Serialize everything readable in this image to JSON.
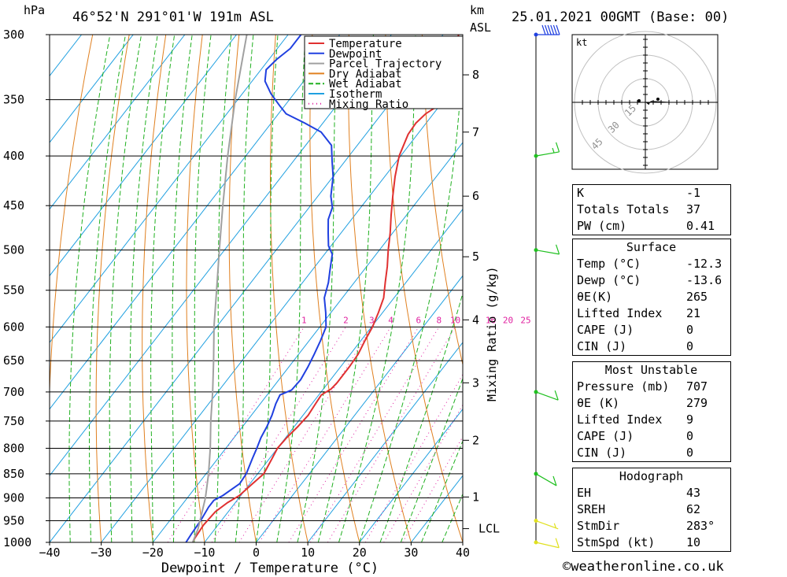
{
  "header": {
    "pressure_unit": "hPa",
    "location": "46°52'N 291°01'W 191m ASL",
    "km_label": "km",
    "asl_label": "ASL",
    "datetime": "25.01.2021 00GMT (Base: 00)"
  },
  "chart_data": {
    "type": "line",
    "title": "",
    "xlabel": "Dewpoint / Temperature (°C)",
    "ylabel": "hPa",
    "right_axis_label": "Mixing Ratio (g/kg)",
    "xlim": [
      -40,
      40
    ],
    "x_ticks": [
      -40,
      -30,
      -20,
      -10,
      0,
      10,
      20,
      30,
      40
    ],
    "pressure_ticks": [
      300,
      350,
      400,
      450,
      500,
      550,
      600,
      650,
      700,
      750,
      800,
      850,
      900,
      950,
      1000
    ],
    "km_ticks": [
      {
        "label": "8",
        "p": 330
      },
      {
        "label": "7",
        "p": 378
      },
      {
        "label": "6",
        "p": 440
      },
      {
        "label": "5",
        "p": 508
      },
      {
        "label": "4",
        "p": 590
      },
      {
        "label": "3",
        "p": 685
      },
      {
        "label": "2",
        "p": 785
      },
      {
        "label": "1",
        "p": 898
      },
      {
        "label": "LCL",
        "p": 968
      }
    ],
    "mixing_ratio_labels": [
      "1",
      "2",
      "3",
      "4",
      "6",
      "8",
      "10",
      "16",
      "20",
      "25"
    ],
    "legend": [
      {
        "name": "Temperature",
        "color": "#e03030"
      },
      {
        "name": "Dewpoint",
        "color": "#2040e0"
      },
      {
        "name": "Parcel Trajectory",
        "color": "#a0a0a0"
      },
      {
        "name": "Dry Adiabat",
        "color": "#e08020"
      },
      {
        "name": "Wet Adiabat",
        "color": "#20b020"
      },
      {
        "name": "Isotherm",
        "color": "#20a0e0"
      },
      {
        "name": "Mixing Ratio",
        "color": "#e020a0"
      }
    ],
    "series": [
      {
        "name": "Temperature",
        "color": "#e03030",
        "points": [
          [
            1000,
            -12.3
          ],
          [
            990,
            -12.5
          ],
          [
            960,
            -12.8
          ],
          [
            930,
            -12.5
          ],
          [
            910,
            -11.5
          ],
          [
            895,
            -10.3
          ],
          [
            870,
            -9.5
          ],
          [
            850,
            -8.8
          ],
          [
            820,
            -9.5
          ],
          [
            800,
            -10.0
          ],
          [
            780,
            -9.8
          ],
          [
            760,
            -9.3
          ],
          [
            740,
            -9.0
          ],
          [
            720,
            -9.3
          ],
          [
            705,
            -9.5
          ],
          [
            695,
            -8.5
          ],
          [
            685,
            -8.3
          ],
          [
            660,
            -8.3
          ],
          [
            640,
            -8.5
          ],
          [
            620,
            -9.2
          ],
          [
            600,
            -9.8
          ],
          [
            580,
            -10.8
          ],
          [
            560,
            -12.0
          ],
          [
            540,
            -14.0
          ],
          [
            520,
            -16.0
          ],
          [
            500,
            -18.3
          ],
          [
            480,
            -20.5
          ],
          [
            460,
            -23.0
          ],
          [
            440,
            -25.5
          ],
          [
            420,
            -28.0
          ],
          [
            400,
            -30.3
          ],
          [
            380,
            -31.8
          ],
          [
            370,
            -32.0
          ],
          [
            362,
            -31.5
          ],
          [
            355,
            -30.3
          ],
          [
            345,
            -30.5
          ],
          [
            335,
            -31.0
          ],
          [
            325,
            -32.5
          ],
          [
            315,
            -34.5
          ],
          [
            305,
            -36.3
          ],
          [
            300,
            -37.0
          ]
        ]
      },
      {
        "name": "Dewpoint",
        "color": "#2040e0",
        "points": [
          [
            1000,
            -13.6
          ],
          [
            980,
            -13.8
          ],
          [
            950,
            -14.0
          ],
          [
            920,
            -14.5
          ],
          [
            905,
            -14.5
          ],
          [
            895,
            -13.5
          ],
          [
            870,
            -12.0
          ],
          [
            850,
            -12.2
          ],
          [
            820,
            -13.3
          ],
          [
            800,
            -14.0
          ],
          [
            780,
            -14.8
          ],
          [
            760,
            -15.3
          ],
          [
            740,
            -16.0
          ],
          [
            720,
            -17.0
          ],
          [
            705,
            -17.5
          ],
          [
            697,
            -16.0
          ],
          [
            680,
            -15.8
          ],
          [
            660,
            -16.3
          ],
          [
            640,
            -17.0
          ],
          [
            620,
            -17.8
          ],
          [
            600,
            -18.8
          ],
          [
            580,
            -21.0
          ],
          [
            560,
            -23.5
          ],
          [
            540,
            -25.0
          ],
          [
            525,
            -26.5
          ],
          [
            505,
            -28.5
          ],
          [
            495,
            -30.5
          ],
          [
            480,
            -32.5
          ],
          [
            465,
            -34.5
          ],
          [
            452,
            -35.5
          ],
          [
            440,
            -37.5
          ],
          [
            420,
            -40.0
          ],
          [
            405,
            -42.5
          ],
          [
            390,
            -45.0
          ],
          [
            378,
            -49.0
          ],
          [
            370,
            -53.5
          ],
          [
            362,
            -58.5
          ],
          [
            355,
            -61.0
          ],
          [
            345,
            -64.5
          ],
          [
            335,
            -67.5
          ],
          [
            326,
            -69.0
          ],
          [
            318,
            -68.5
          ],
          [
            310,
            -67.5
          ],
          [
            300,
            -67.5
          ]
        ]
      },
      {
        "name": "Parcel Trajectory",
        "color": "#a0a0a0",
        "points": [
          [
            1000,
            -12.3
          ],
          [
            968,
            -13.3
          ],
          [
            900,
            -16.5
          ],
          [
            850,
            -19.5
          ],
          [
            800,
            -23.0
          ],
          [
            750,
            -27.0
          ],
          [
            700,
            -31.0
          ],
          [
            650,
            -35.5
          ],
          [
            600,
            -40.5
          ],
          [
            550,
            -45.5
          ],
          [
            500,
            -51.0
          ],
          [
            450,
            -57.0
          ],
          [
            400,
            -63.5
          ],
          [
            350,
            -70.5
          ],
          [
            300,
            -78.0
          ]
        ]
      }
    ],
    "wind_barbs": [
      {
        "p": 300,
        "speed_kt": 60,
        "dir_deg": 270
      },
      {
        "p": 400,
        "speed_kt": 15,
        "dir_deg": 260
      },
      {
        "p": 500,
        "speed_kt": 10,
        "dir_deg": 280
      },
      {
        "p": 700,
        "speed_kt": 10,
        "dir_deg": 290
      },
      {
        "p": 850,
        "speed_kt": 10,
        "dir_deg": 300
      },
      {
        "p": 950,
        "speed_kt": 5,
        "dir_deg": 290
      },
      {
        "p": 1000,
        "speed_kt": 10,
        "dir_deg": 283
      }
    ]
  },
  "hodograph": {
    "unit_label": "kt",
    "ring_labels": [
      "15",
      "30",
      "45"
    ]
  },
  "indices": {
    "rows": [
      {
        "label": "K",
        "value": "-1"
      },
      {
        "label": "Totals Totals",
        "value": "37"
      },
      {
        "label": "PW (cm)",
        "value": "0.41"
      }
    ]
  },
  "surface": {
    "title": "Surface",
    "rows": [
      {
        "label": "Temp (°C)",
        "value": "-12.3"
      },
      {
        "label": "Dewp (°C)",
        "value": "-13.6"
      },
      {
        "label": "θE(K)",
        "value": "265"
      },
      {
        "label": "Lifted Index",
        "value": "21"
      },
      {
        "label": "CAPE (J)",
        "value": "0"
      },
      {
        "label": "CIN (J)",
        "value": "0"
      }
    ]
  },
  "most_unstable": {
    "title": "Most Unstable",
    "rows": [
      {
        "label": "Pressure (mb)",
        "value": "707"
      },
      {
        "label": "θE (K)",
        "value": "279"
      },
      {
        "label": "Lifted Index",
        "value": "9"
      },
      {
        "label": "CAPE (J)",
        "value": "0"
      },
      {
        "label": "CIN (J)",
        "value": "0"
      }
    ]
  },
  "hodograph_params": {
    "title": "Hodograph",
    "rows": [
      {
        "label": "EH",
        "value": "43"
      },
      {
        "label": "SREH",
        "value": "62"
      },
      {
        "label": "StmDir",
        "value": "283°"
      },
      {
        "label": "StmSpd (kt)",
        "value": "10"
      }
    ]
  },
  "footer": {
    "copyright": "©weatheronline.co.uk"
  }
}
